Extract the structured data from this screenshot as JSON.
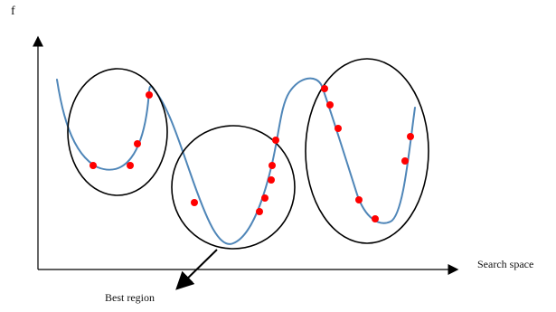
{
  "labels": {
    "y_axis": "f",
    "x_axis": "Search space",
    "best_region": "Best region"
  },
  "colors": {
    "curve": "#4f86b8",
    "points": "#ff0000",
    "axes": "#000000",
    "ellipses": "#000000"
  },
  "regions": [
    {
      "name": "left-region"
    },
    {
      "name": "middle-region"
    },
    {
      "name": "right-region"
    }
  ]
}
